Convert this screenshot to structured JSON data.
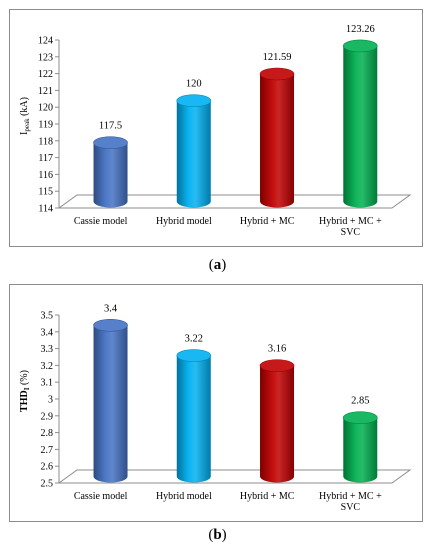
{
  "chart_data": [
    {
      "type": "bar",
      "panel_label": "a",
      "ylabel_main": "I",
      "ylabel_sub": "peak",
      "ylabel_unit": "(kA)",
      "ylim": [
        114,
        124
      ],
      "yticks": [
        "114",
        "115",
        "116",
        "117",
        "118",
        "119",
        "120",
        "121",
        "122",
        "123",
        "124"
      ],
      "categories": [
        [
          "Cassie model"
        ],
        [
          "Hybrid model"
        ],
        [
          "Hybrid + MC"
        ],
        [
          "Hybrid + MC +",
          "SVC"
        ]
      ],
      "values": [
        117.5,
        120,
        121.59,
        123.26
      ],
      "value_labels": [
        "117.5",
        "120",
        "121.59",
        "123.26"
      ],
      "colors": [
        "#4472c4",
        "#00b0f0",
        "#c00000",
        "#00b050"
      ]
    },
    {
      "type": "bar",
      "panel_label": "b",
      "ylabel_main": "THD",
      "ylabel_sub": "I",
      "ylabel_unit": "(%)",
      "ylim": [
        2.5,
        3.5
      ],
      "yticks": [
        "2.5",
        "2.6",
        "2.7",
        "2.8",
        "2.9",
        "3",
        "3.1",
        "3.2",
        "3.3",
        "3.4",
        "3.5"
      ],
      "categories": [
        [
          "Cassie model"
        ],
        [
          "Hybrid model"
        ],
        [
          "Hybrid + MC"
        ],
        [
          "Hybrid + MC +",
          "SVC"
        ]
      ],
      "values": [
        3.4,
        3.22,
        3.16,
        2.85
      ],
      "value_labels": [
        "3.4",
        "3.22",
        "3.16",
        "2.85"
      ],
      "colors": [
        "#4472c4",
        "#00b0f0",
        "#c00000",
        "#00b050"
      ]
    }
  ]
}
